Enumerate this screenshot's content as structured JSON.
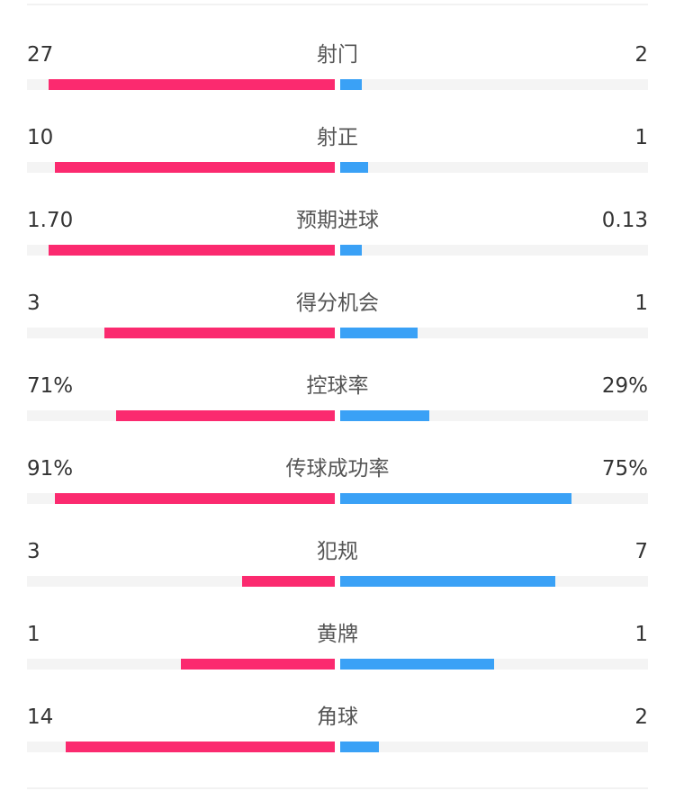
{
  "colors": {
    "home": "#fb2a6f",
    "away": "#3aa1f6",
    "track": "#f4f4f4"
  },
  "stats": [
    {
      "label": "射门",
      "home": "27",
      "away": "2",
      "home_fraction": 0.93,
      "away_fraction": 0.069
    },
    {
      "label": "射正",
      "home": "10",
      "away": "1",
      "home_fraction": 0.909,
      "away_fraction": 0.091
    },
    {
      "label": "预期进球",
      "home": "1.70",
      "away": "0.13",
      "home_fraction": 0.929,
      "away_fraction": 0.071
    },
    {
      "label": "得分机会",
      "home": "3",
      "away": "1",
      "home_fraction": 0.75,
      "away_fraction": 0.25
    },
    {
      "label": "控球率",
      "home": "71%",
      "away": "29%",
      "home_fraction": 0.71,
      "away_fraction": 0.29
    },
    {
      "label": "传球成功率",
      "home": "91%",
      "away": "75%",
      "home_fraction": 0.91,
      "away_fraction": 0.75
    },
    {
      "label": "犯规",
      "home": "3",
      "away": "7",
      "home_fraction": 0.3,
      "away_fraction": 0.7
    },
    {
      "label": "黄牌",
      "home": "1",
      "away": "1",
      "home_fraction": 0.5,
      "away_fraction": 0.5
    },
    {
      "label": "角球",
      "home": "14",
      "away": "2",
      "home_fraction": 0.875,
      "away_fraction": 0.125
    }
  ]
}
